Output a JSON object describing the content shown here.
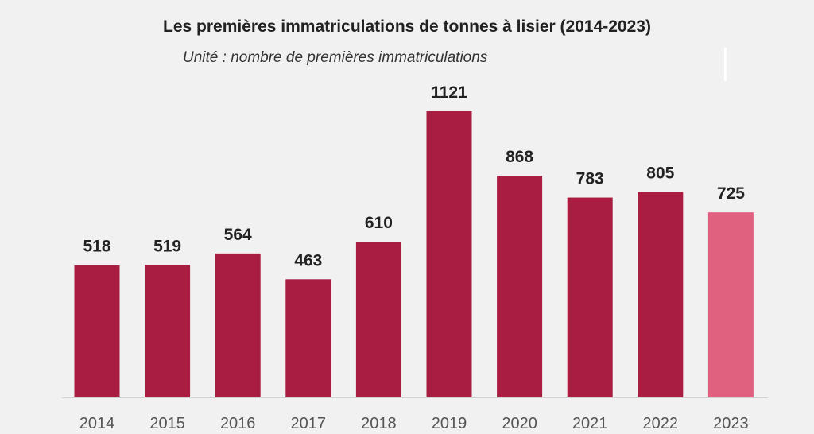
{
  "chart_data": {
    "type": "bar",
    "title": "Les premières immatriculations de tonnes à lisier (2014-2023)",
    "subtitle": "Unité : nombre de premières immatriculations",
    "xlabel": "",
    "ylabel": "",
    "categories": [
      "2014",
      "2015",
      "2016",
      "2017",
      "2018",
      "2019",
      "2020",
      "2021",
      "2022",
      "2023"
    ],
    "values": [
      518,
      519,
      564,
      463,
      610,
      1121,
      868,
      783,
      805,
      725
    ],
    "value_labels": [
      "518",
      "519",
      "564",
      "463",
      "610",
      "1121",
      "868",
      "783",
      "805",
      "725"
    ],
    "ylim": [
      0,
      1121
    ],
    "grid": false,
    "legend": "none",
    "colors": {
      "bar": "#a91d43",
      "highlight_bar": "#e06080",
      "baseline": "#d0d0d0"
    },
    "highlight_index": 9
  }
}
